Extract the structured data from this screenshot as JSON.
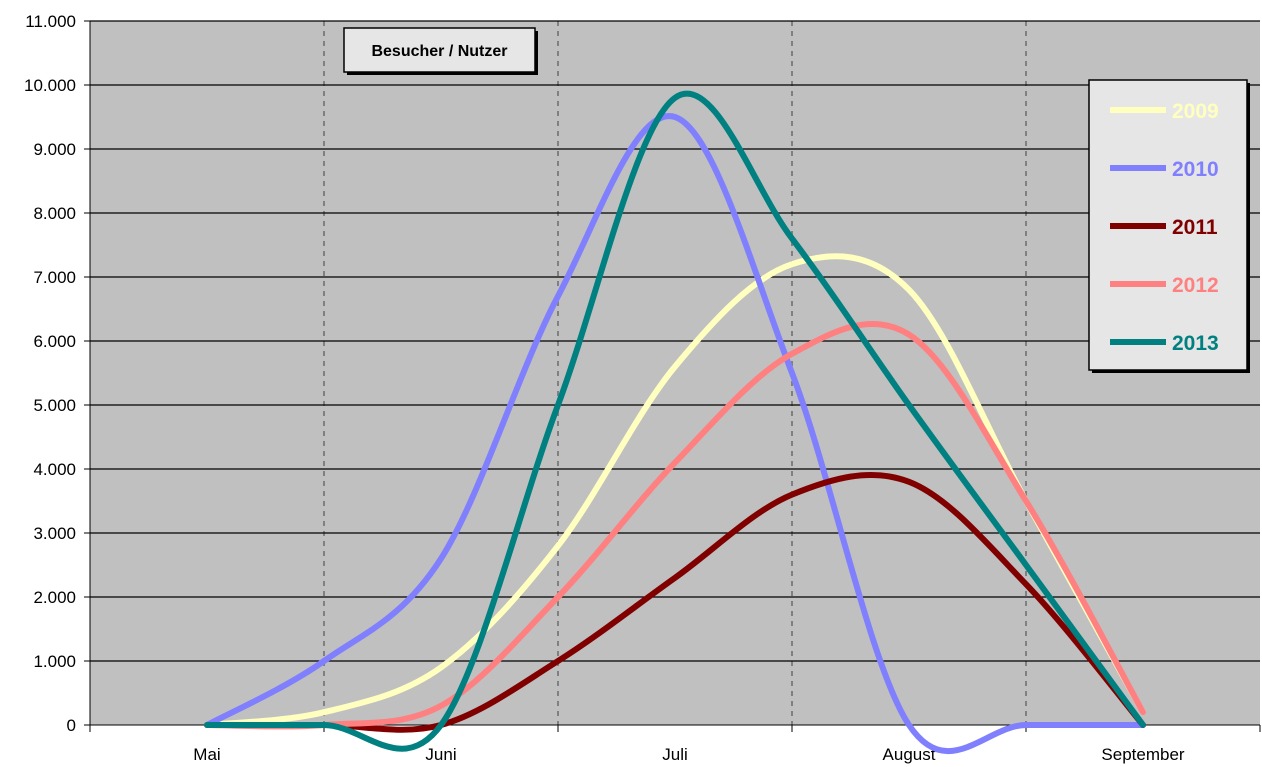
{
  "chart_data": {
    "type": "line",
    "title": "Besucher / Nutzer",
    "categories": [
      "Mai",
      "Juni",
      "Juli",
      "August",
      "September"
    ],
    "ylim": [
      0,
      11000
    ],
    "yticks": [
      "0",
      "1.000",
      "2.000",
      "3.000",
      "4.000",
      "5.000",
      "6.000",
      "7.000",
      "8.000",
      "9.000",
      "10.000",
      "11.000"
    ],
    "grid": {
      "horizontal": true,
      "vertical_dashed": true
    },
    "plot_background": "#c0c0c0",
    "legend_position": "right",
    "series": [
      {
        "name": "2009",
        "color": "#ffffc0",
        "points": [
          [
            1.0,
            0
          ],
          [
            1.5,
            200
          ],
          [
            2.0,
            900
          ],
          [
            2.5,
            2800
          ],
          [
            3.0,
            5600
          ],
          [
            3.5,
            7200
          ],
          [
            4.0,
            6800
          ],
          [
            4.5,
            3500
          ],
          [
            5.0,
            200
          ]
        ]
      },
      {
        "name": "2010",
        "color": "#8080ff",
        "points": [
          [
            1.0,
            0
          ],
          [
            1.5,
            1000
          ],
          [
            2.0,
            2600
          ],
          [
            2.5,
            6700
          ],
          [
            3.0,
            9500
          ],
          [
            3.5,
            5500
          ],
          [
            4.0,
            0
          ],
          [
            4.5,
            0
          ],
          [
            5.0,
            0
          ]
        ]
      },
      {
        "name": "2011",
        "color": "#800000",
        "points": [
          [
            1.0,
            0
          ],
          [
            1.5,
            0
          ],
          [
            2.0,
            0
          ],
          [
            2.5,
            1000
          ],
          [
            3.0,
            2300
          ],
          [
            3.5,
            3600
          ],
          [
            4.0,
            3800
          ],
          [
            4.5,
            2200
          ],
          [
            5.0,
            0
          ]
        ]
      },
      {
        "name": "2012",
        "color": "#ff8080",
        "points": [
          [
            1.0,
            0
          ],
          [
            1.5,
            0
          ],
          [
            2.0,
            300
          ],
          [
            2.5,
            2000
          ],
          [
            3.0,
            4100
          ],
          [
            3.5,
            5800
          ],
          [
            4.0,
            6100
          ],
          [
            4.5,
            3500
          ],
          [
            5.0,
            200
          ]
        ]
      },
      {
        "name": "2013",
        "color": "#008080",
        "points": [
          [
            1.0,
            0
          ],
          [
            1.5,
            0
          ],
          [
            2.0,
            0
          ],
          [
            2.5,
            5000
          ],
          [
            3.0,
            9800
          ],
          [
            3.5,
            7600
          ],
          [
            4.0,
            5000
          ],
          [
            4.5,
            2500
          ],
          [
            5.0,
            0
          ]
        ]
      }
    ]
  }
}
